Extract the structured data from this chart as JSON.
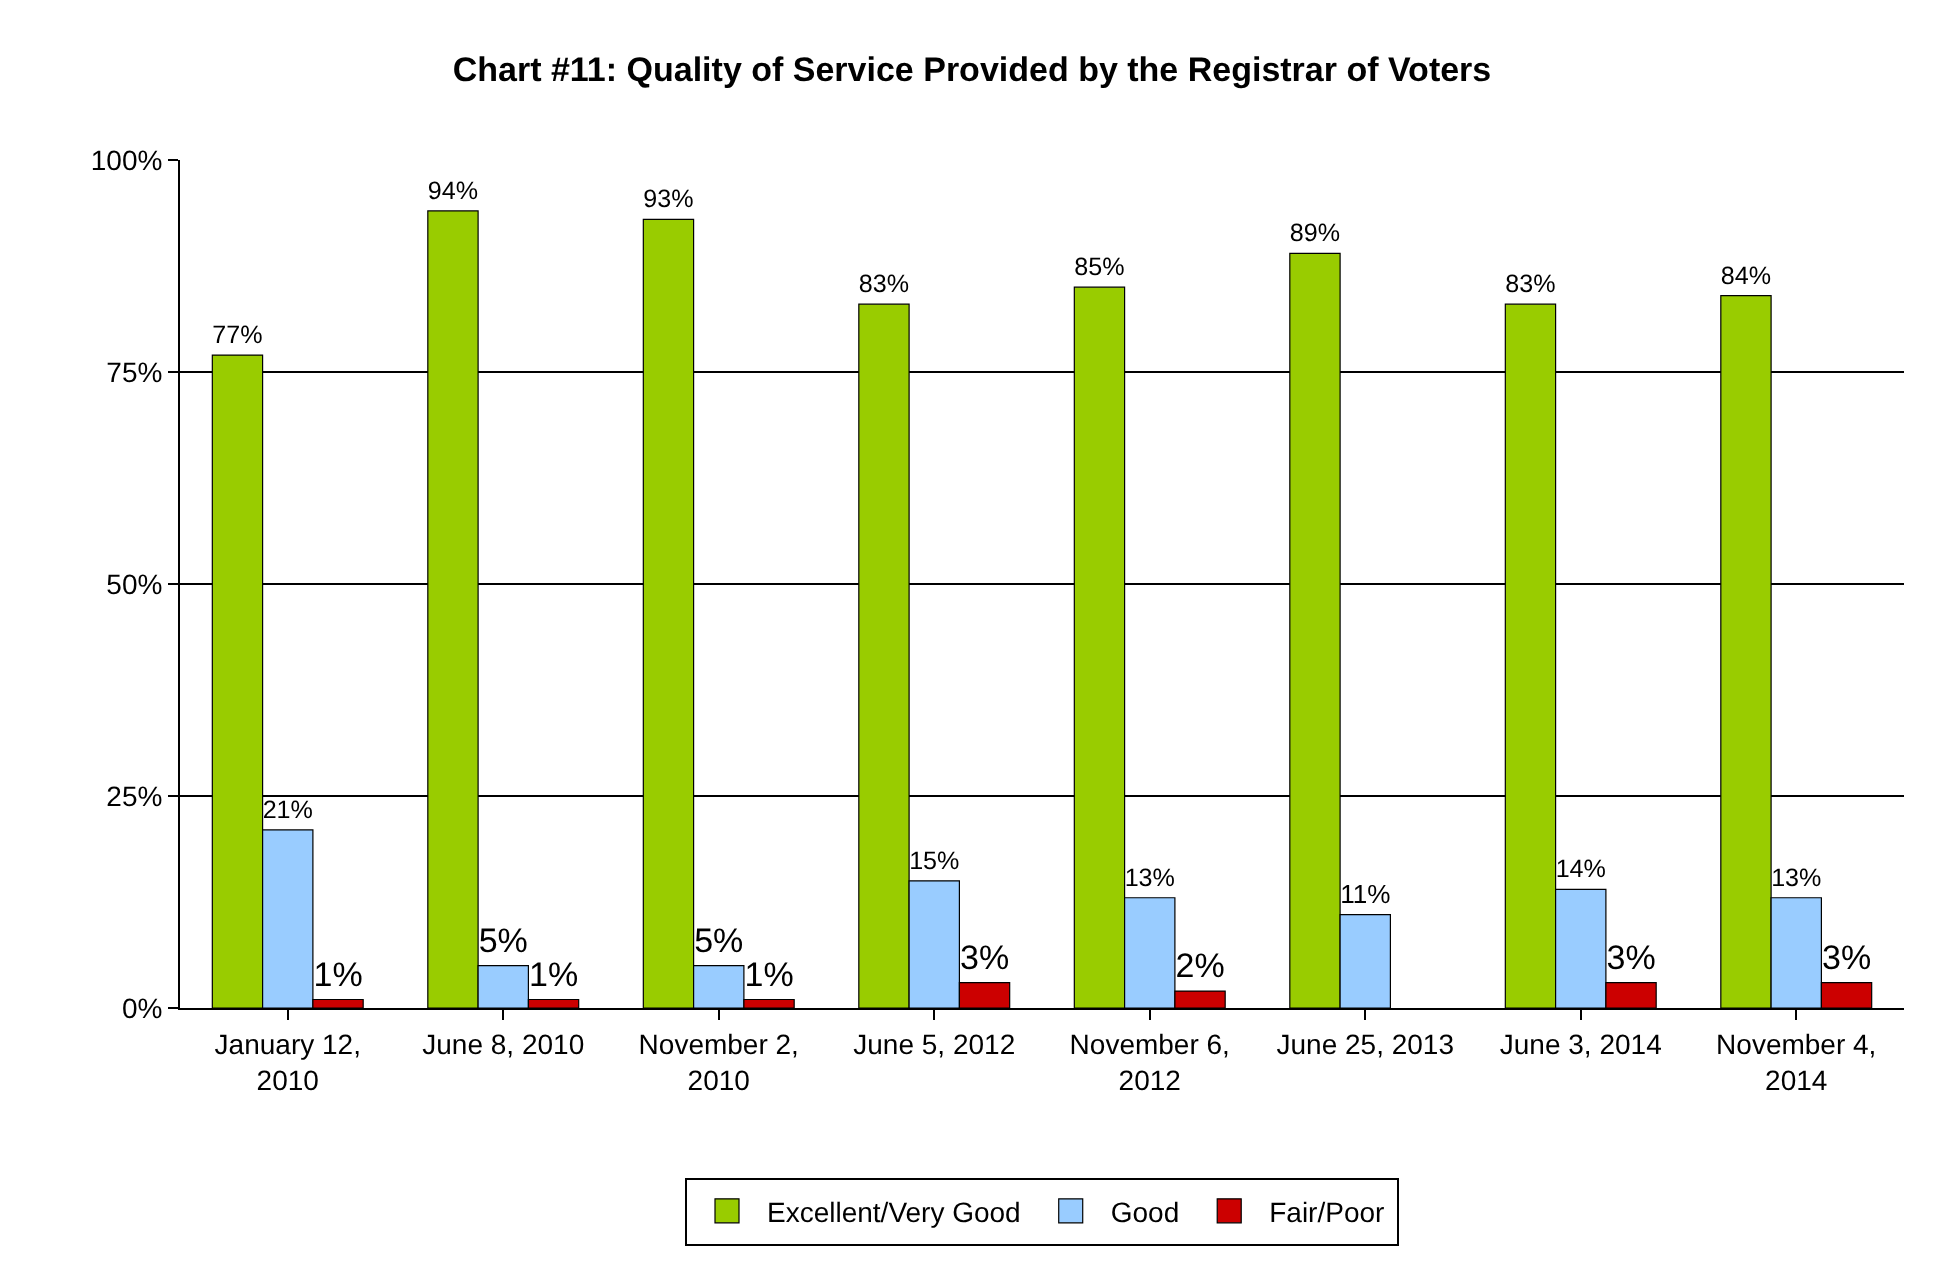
{
  "chart_data": {
    "type": "bar",
    "title": "Chart #11: Quality of Service Provided by the Registrar of Voters",
    "categories": [
      "January 12, 2010",
      "June 8, 2010",
      "November 2, 2010",
      "June 5, 2012",
      "November 6, 2012",
      "June 25, 2013",
      "June 3, 2014",
      "November 4, 2014"
    ],
    "series": [
      {
        "name": "Excellent/Very Good",
        "color": "#99cc00",
        "values": [
          77,
          94,
          93,
          83,
          85,
          89,
          83,
          84
        ],
        "value_labels": [
          "77%",
          "94%",
          "93%",
          "83%",
          "85%",
          "89%",
          "83%",
          "84%"
        ]
      },
      {
        "name": "Good",
        "color": "#99ccff",
        "values": [
          21,
          5,
          5,
          15,
          13,
          11,
          14,
          13
        ],
        "value_labels": [
          "21%",
          "5%",
          "5%",
          "15%",
          "13%",
          "11%",
          "14%",
          "13%"
        ]
      },
      {
        "name": "Fair/Poor",
        "color": "#cc0000",
        "values": [
          1,
          1,
          1,
          3,
          2,
          null,
          3,
          3
        ],
        "value_labels": [
          "1%",
          "1%",
          "1%",
          "3%",
          "2%",
          null,
          "3%",
          "3%"
        ]
      }
    ],
    "ylim": [
      0,
      100
    ],
    "yticks": [
      {
        "value": 0,
        "label": "0%"
      },
      {
        "value": 25,
        "label": "25%"
      },
      {
        "value": 50,
        "label": "50%"
      },
      {
        "value": 75,
        "label": "75%"
      },
      {
        "value": 100,
        "label": "100%"
      }
    ],
    "grid": "y",
    "legend": "bottom"
  }
}
